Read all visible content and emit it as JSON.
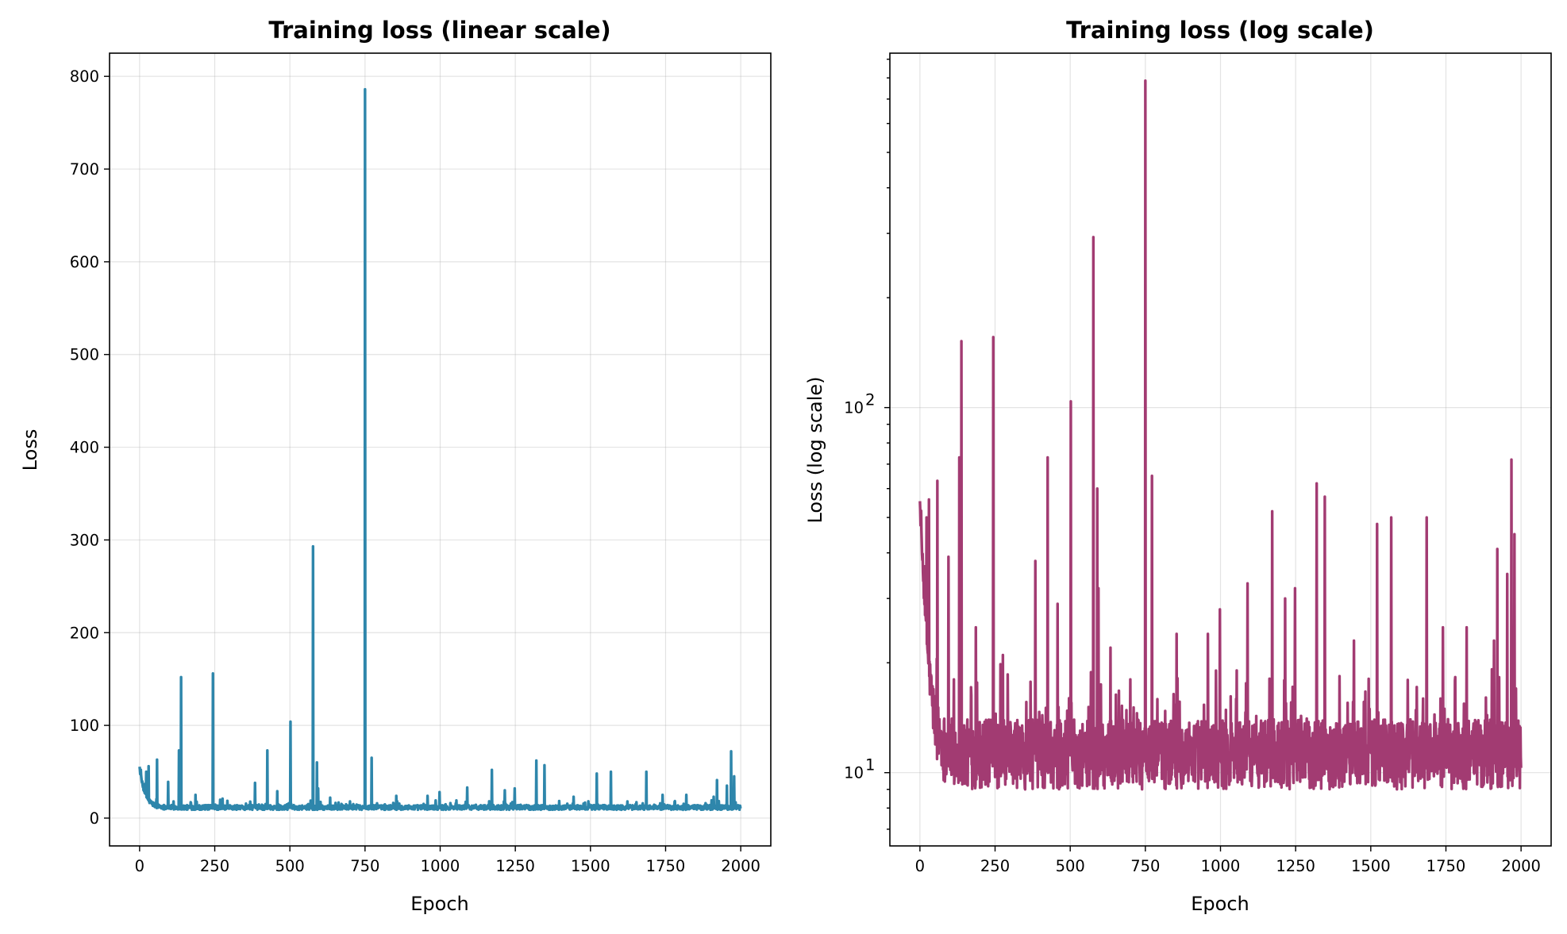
{
  "chart_data": [
    {
      "type": "line",
      "title": "Training loss (linear scale)",
      "xlabel": "Epoch",
      "ylabel": "Loss",
      "xlim": [
        -100,
        2100
      ],
      "ylim": [
        -30,
        825
      ],
      "xticks": [
        0,
        250,
        500,
        750,
        1000,
        1250,
        1500,
        1750,
        2000
      ],
      "xtick_labels": [
        "0",
        "250",
        "500",
        "750",
        "1000",
        "1250",
        "1500",
        "1750",
        "2000"
      ],
      "yticks": [
        0,
        100,
        200,
        300,
        400,
        500,
        600,
        700,
        800
      ],
      "ytick_labels": [
        "0",
        "100",
        "200",
        "300",
        "400",
        "500",
        "600",
        "700",
        "800"
      ],
      "yscale": "linear",
      "grid": true,
      "color": "#2e86ab",
      "epochs": 2000,
      "baseline": {
        "start": 54,
        "floor": 11.5,
        "noise": 2.5
      },
      "spikes": [
        [
          22,
          50
        ],
        [
          30,
          56
        ],
        [
          58,
          63
        ],
        [
          95,
          39
        ],
        [
          131,
          73
        ],
        [
          138,
          152
        ],
        [
          186,
          25
        ],
        [
          244,
          156
        ],
        [
          276,
          21
        ],
        [
          384,
          38
        ],
        [
          425,
          73
        ],
        [
          458,
          29
        ],
        [
          502,
          104
        ],
        [
          577,
          293
        ],
        [
          590,
          60
        ],
        [
          594,
          32
        ],
        [
          634,
          22
        ],
        [
          700,
          18
        ],
        [
          750,
          786
        ],
        [
          772,
          65
        ],
        [
          854,
          24
        ],
        [
          958,
          24
        ],
        [
          998,
          28
        ],
        [
          1090,
          33
        ],
        [
          1172,
          52
        ],
        [
          1215,
          30
        ],
        [
          1248,
          32
        ],
        [
          1320,
          62
        ],
        [
          1347,
          57
        ],
        [
          1444,
          23
        ],
        [
          1521,
          48
        ],
        [
          1568,
          50
        ],
        [
          1686,
          50
        ],
        [
          1740,
          25
        ],
        [
          1819,
          25
        ],
        [
          1910,
          23
        ],
        [
          1921,
          41
        ],
        [
          1954,
          35
        ],
        [
          1968,
          72
        ],
        [
          1978,
          45
        ]
      ]
    },
    {
      "type": "line",
      "title": "Training loss (log scale)",
      "xlabel": "Epoch",
      "ylabel": "Loss (log scale)",
      "xlim": [
        -100,
        2100
      ],
      "ylim": [
        6.3,
        935
      ],
      "xticks": [
        0,
        250,
        500,
        750,
        1000,
        1250,
        1500,
        1750,
        2000
      ],
      "xtick_labels": [
        "0",
        "250",
        "500",
        "750",
        "1000",
        "1250",
        "1500",
        "1750",
        "2000"
      ],
      "yticks": [
        10,
        100
      ],
      "ytick_labels": [
        {
          "base": "10",
          "exp": "1"
        },
        {
          "base": "10",
          "exp": "2"
        }
      ],
      "yscale": "log",
      "grid": true,
      "color": "#a23b72",
      "epochs": 2000,
      "baseline": {
        "start": 54,
        "floor": 11.5,
        "noise": 2.5
      },
      "spikes": [
        [
          22,
          50
        ],
        [
          30,
          56
        ],
        [
          58,
          63
        ],
        [
          95,
          39
        ],
        [
          131,
          73
        ],
        [
          138,
          152
        ],
        [
          186,
          25
        ],
        [
          244,
          156
        ],
        [
          276,
          21
        ],
        [
          384,
          38
        ],
        [
          425,
          73
        ],
        [
          458,
          29
        ],
        [
          502,
          104
        ],
        [
          577,
          293
        ],
        [
          590,
          60
        ],
        [
          594,
          32
        ],
        [
          634,
          22
        ],
        [
          700,
          18
        ],
        [
          750,
          786
        ],
        [
          772,
          65
        ],
        [
          854,
          24
        ],
        [
          958,
          24
        ],
        [
          998,
          28
        ],
        [
          1090,
          33
        ],
        [
          1172,
          52
        ],
        [
          1215,
          30
        ],
        [
          1248,
          32
        ],
        [
          1320,
          62
        ],
        [
          1347,
          57
        ],
        [
          1444,
          23
        ],
        [
          1521,
          48
        ],
        [
          1568,
          50
        ],
        [
          1686,
          50
        ],
        [
          1740,
          25
        ],
        [
          1819,
          25
        ],
        [
          1910,
          23
        ],
        [
          1921,
          41
        ],
        [
          1954,
          35
        ],
        [
          1968,
          72
        ],
        [
          1978,
          45
        ]
      ]
    }
  ]
}
